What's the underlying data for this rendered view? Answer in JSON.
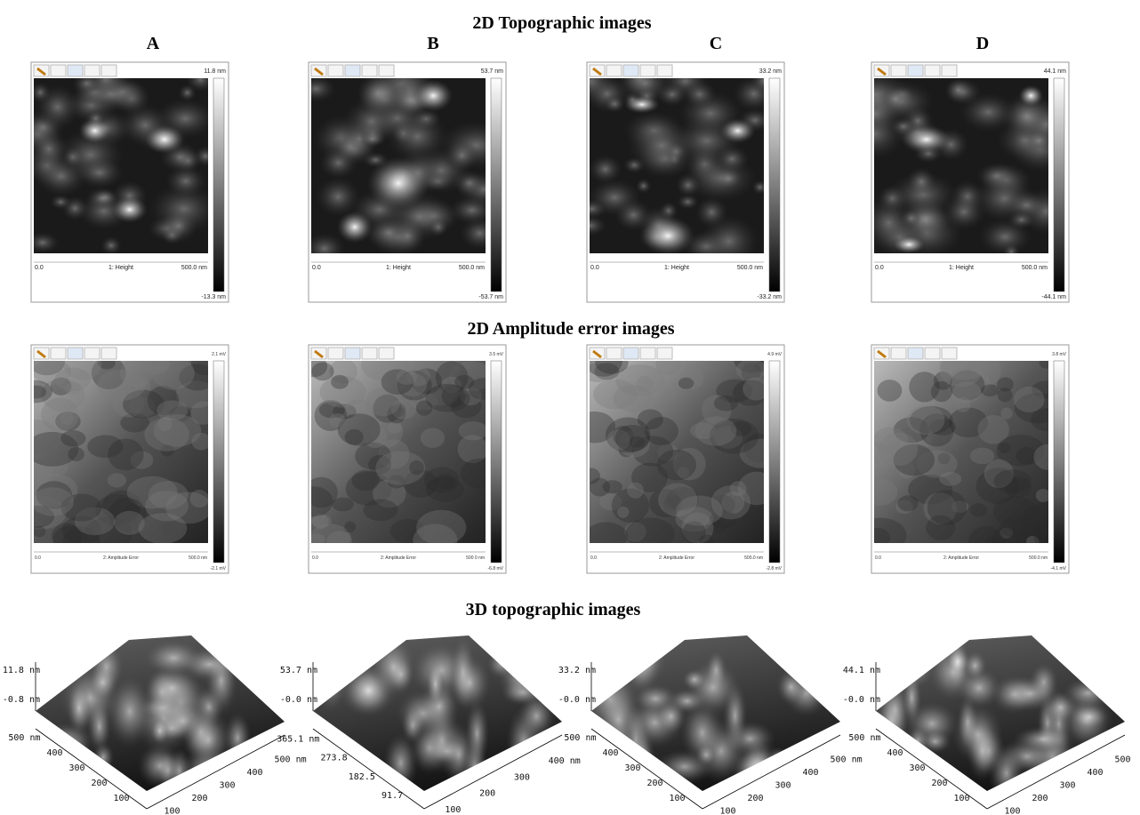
{
  "title_topo": "2D Topographic images",
  "title_amp": "2D Amplitude error images",
  "title_3d": "3D topographic images",
  "columns": [
    "A",
    "B",
    "C",
    "D"
  ],
  "topo": [
    {
      "max": "11.8 nm",
      "min": "-13.3 nm",
      "x_start": "0.0",
      "channel": "1: Height",
      "x_end": "500.0 nm"
    },
    {
      "max": "53.7 nm",
      "min": "-53.7 nm",
      "x_start": "0.0",
      "channel": "1: Height",
      "x_end": "500.0 nm"
    },
    {
      "max": "33.2 nm",
      "min": "-33.2 nm",
      "x_start": "0.0",
      "channel": "1: Height",
      "x_end": "500.0 nm"
    },
    {
      "max": "44.1 nm",
      "min": "-44.1 nm",
      "x_start": "0.0",
      "channel": "1: Height",
      "x_end": "500.0 nm"
    }
  ],
  "amp": [
    {
      "max": "2.1 mV",
      "min": "-2.1 mV",
      "x_start": "0.0",
      "channel": "2: Amplitude Error",
      "x_end": "500.0 nm"
    },
    {
      "max": "3.5 mV",
      "min": "-6.8 mV",
      "x_start": "0.0",
      "channel": "2: Amplitude Error",
      "x_end": "500 0 nm"
    },
    {
      "max": "4.9 mV",
      "min": "-2.8 mV",
      "x_start": "0.0",
      "channel": "2: Amplitude Error",
      "x_end": "500.0 nm"
    },
    {
      "max": "3.8 mV",
      "min": "-4.1 mV",
      "x_start": "0.0",
      "channel": "2: Amplitude Error",
      "x_end": "500.0 nm"
    }
  ],
  "three_d": [
    {
      "z_max": "11.8 nm",
      "z_mid": "-0.8 nm",
      "left_ticks": [
        "500 nm",
        "400",
        "300",
        "200",
        "100"
      ],
      "right_ticks": [
        "100",
        "200",
        "300",
        "400",
        "500 nm"
      ]
    },
    {
      "z_max": "53.7 nm",
      "z_mid": "-0.0 nm",
      "left_ticks": [
        "365.1 nm",
        "273.8",
        "182.5",
        "91.7"
      ],
      "right_ticks": [
        "100",
        "200",
        "300",
        "400 nm"
      ]
    },
    {
      "z_max": "33.2 nm",
      "z_mid": "-0.0 nm",
      "left_ticks": [
        "500 nm",
        "400",
        "300",
        "200",
        "100"
      ],
      "right_ticks": [
        "100",
        "200",
        "300",
        "400",
        "500 nm"
      ]
    },
    {
      "z_max": "44.1 nm",
      "z_mid": "-0.0 nm",
      "left_ticks": [
        "500 nm",
        "400",
        "300",
        "200",
        "100"
      ],
      "right_ticks": [
        "100",
        "200",
        "300",
        "400",
        "500"
      ]
    }
  ]
}
